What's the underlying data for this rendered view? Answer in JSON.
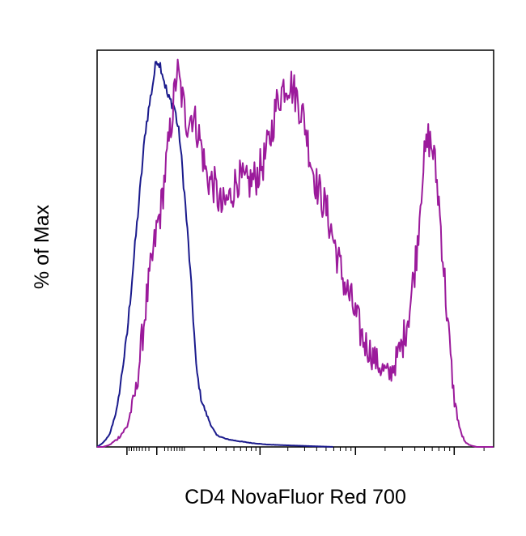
{
  "chart_data": {
    "type": "line",
    "title": "",
    "xlabel": "CD4 NovaFluor Red 700",
    "ylabel": "% of Max",
    "x_scale": "log",
    "xlim": [
      -300,
      250000
    ],
    "ylim": [
      0,
      100
    ],
    "grid": false,
    "legend": "none",
    "series": [
      {
        "color": "#1a1a8c",
        "x": [
          -300,
          -250,
          -200,
          -150,
          -100,
          -60,
          -30,
          0,
          10,
          30,
          50,
          70,
          90,
          110,
          130,
          150,
          180,
          220,
          260,
          300,
          400,
          550,
          800,
          1200,
          2000,
          3500,
          6000
        ],
        "y": [
          0,
          1,
          3,
          10,
          28,
          55,
          80,
          98,
          96,
          88,
          86,
          78,
          64,
          50,
          35,
          20,
          12,
          8,
          5,
          3,
          2,
          1.5,
          1,
          0.6,
          0.4,
          0.2,
          0
        ]
      },
      {
        "color": "#9b1a9b",
        "x": [
          -300,
          -250,
          -200,
          -150,
          -100,
          -60,
          -30,
          0,
          10,
          20,
          30,
          45,
          60,
          80,
          100,
          130,
          170,
          220,
          280,
          350,
          450,
          550,
          700,
          900,
          1100,
          1300,
          1500,
          1800,
          2100,
          2500,
          3000,
          3500,
          4000,
          5000,
          6000,
          7000,
          8000,
          9000,
          10000,
          12000,
          15000,
          18000,
          22000,
          26000,
          30000,
          36000,
          42000,
          48000,
          55000,
          62000,
          70000,
          80000,
          90000,
          100000,
          115000,
          130000,
          150000,
          170000,
          200000,
          250000
        ],
        "y": [
          0,
          0,
          0.5,
          2,
          5,
          15,
          35,
          55,
          60,
          68,
          75,
          85,
          95,
          88,
          82,
          84,
          78,
          68,
          66,
          60,
          63,
          68,
          66,
          68,
          72,
          78,
          86,
          91,
          92,
          88,
          82,
          72,
          66,
          60,
          52,
          45,
          40,
          37,
          33,
          27,
          23,
          20,
          18,
          22,
          26,
          36,
          50,
          70,
          78,
          74,
          62,
          42,
          25,
          12,
          4,
          1,
          0.3,
          0,
          0,
          0
        ]
      }
    ]
  }
}
